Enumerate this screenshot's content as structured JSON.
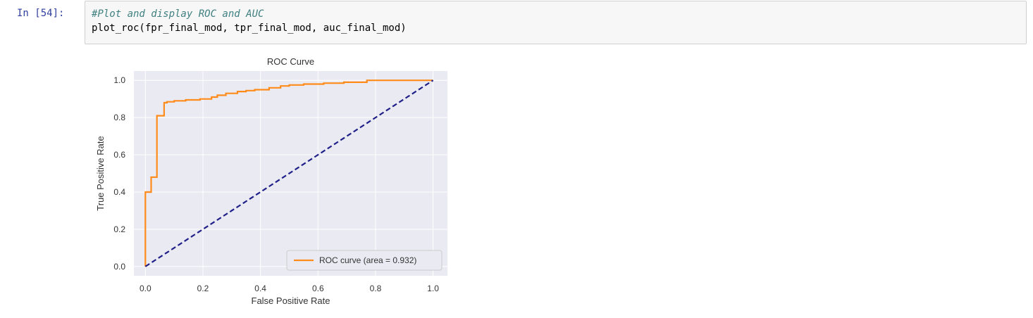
{
  "cell": {
    "prompt": "In [54]:",
    "code_lines": [
      "#Plot and display ROC and AUC",
      "plot_roc(fpr_final_mod, tpr_final_mod, auc_final_mod)"
    ]
  },
  "chart_data": {
    "type": "line",
    "title": "ROC Curve",
    "xlabel": "False Positive Rate",
    "ylabel": "True Positive Rate",
    "xlim": [
      -0.04,
      1.05
    ],
    "ylim": [
      -0.05,
      1.05
    ],
    "xticks": [
      0.0,
      0.2,
      0.4,
      0.6,
      0.8,
      1.0
    ],
    "xtick_labels": [
      "0.0",
      "0.2",
      "0.4",
      "0.6",
      "0.8",
      "1.0"
    ],
    "yticks": [
      0.0,
      0.2,
      0.4,
      0.6,
      0.8,
      1.0
    ],
    "ytick_labels": [
      "0.0",
      "0.2",
      "0.4",
      "0.6",
      "0.8",
      "1.0"
    ],
    "grid": true,
    "legend_position": "lower-right",
    "series": [
      {
        "name": "ROC curve (area = 0.932)",
        "color": "#ff8c1a",
        "style": "solid",
        "x": [
          0,
          0,
          0.02,
          0.02,
          0.04,
          0.04,
          0.065,
          0.065,
          0.075,
          0.075,
          0.1,
          0.1,
          0.14,
          0.14,
          0.19,
          0.19,
          0.23,
          0.23,
          0.25,
          0.25,
          0.28,
          0.28,
          0.32,
          0.32,
          0.35,
          0.35,
          0.38,
          0.38,
          0.43,
          0.43,
          0.47,
          0.47,
          0.5,
          0.5,
          0.55,
          0.55,
          0.62,
          0.62,
          0.69,
          0.69,
          0.77,
          0.77,
          1.0
        ],
        "y": [
          0,
          0.4,
          0.4,
          0.48,
          0.48,
          0.81,
          0.81,
          0.88,
          0.88,
          0.885,
          0.885,
          0.89,
          0.89,
          0.895,
          0.895,
          0.9,
          0.9,
          0.91,
          0.91,
          0.92,
          0.92,
          0.93,
          0.93,
          0.94,
          0.94,
          0.945,
          0.945,
          0.95,
          0.95,
          0.96,
          0.96,
          0.97,
          0.97,
          0.975,
          0.975,
          0.98,
          0.98,
          0.985,
          0.985,
          0.99,
          0.99,
          1.0,
          1.0
        ]
      },
      {
        "color": "#1f1f8a",
        "style": "dashed",
        "x": [
          0,
          1
        ],
        "y": [
          0,
          1
        ]
      }
    ]
  }
}
